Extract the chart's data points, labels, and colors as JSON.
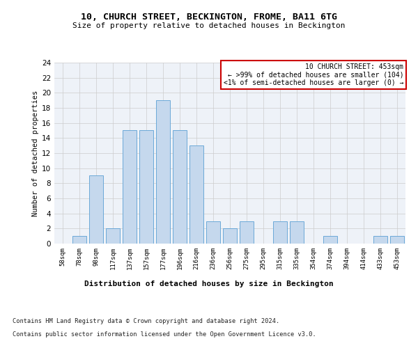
{
  "title1": "10, CHURCH STREET, BECKINGTON, FROME, BA11 6TG",
  "title2": "Size of property relative to detached houses in Beckington",
  "xlabel": "Distribution of detached houses by size in Beckington",
  "ylabel": "Number of detached properties",
  "categories": [
    "58sqm",
    "78sqm",
    "98sqm",
    "117sqm",
    "137sqm",
    "157sqm",
    "177sqm",
    "196sqm",
    "216sqm",
    "236sqm",
    "256sqm",
    "275sqm",
    "295sqm",
    "315sqm",
    "335sqm",
    "354sqm",
    "374sqm",
    "394sqm",
    "414sqm",
    "433sqm",
    "453sqm"
  ],
  "values": [
    0,
    1,
    9,
    2,
    15,
    15,
    19,
    15,
    13,
    3,
    2,
    3,
    0,
    3,
    3,
    0,
    1,
    0,
    0,
    1,
    1
  ],
  "bar_color": "#c5d8ed",
  "bar_edge_color": "#5a9fd4",
  "annotation_title": "10 CHURCH STREET: 453sqm",
  "annotation_line1": "← >99% of detached houses are smaller (104)",
  "annotation_line2": "<1% of semi-detached houses are larger (0) →",
  "annotation_box_color": "#ffffff",
  "annotation_box_edge": "#cc0000",
  "ylim": [
    0,
    24
  ],
  "yticks": [
    0,
    2,
    4,
    6,
    8,
    10,
    12,
    14,
    16,
    18,
    20,
    22,
    24
  ],
  "footer1": "Contains HM Land Registry data © Crown copyright and database right 2024.",
  "footer2": "Contains public sector information licensed under the Open Government Licence v3.0.",
  "background_color": "#eef2f8"
}
